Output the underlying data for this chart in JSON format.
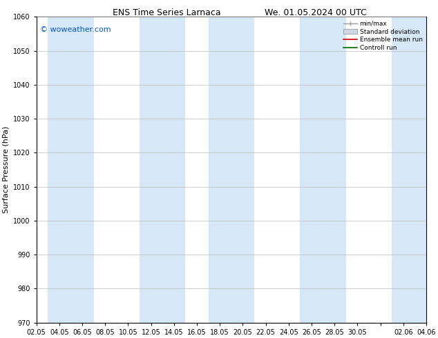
{
  "title_left": "ENS Time Series Larnaca",
  "title_right": "We. 01.05.2024 00 UTC",
  "ylabel": "Surface Pressure (hPa)",
  "ylim": [
    970,
    1060
  ],
  "yticks": [
    970,
    980,
    990,
    1000,
    1010,
    1020,
    1030,
    1040,
    1050,
    1060
  ],
  "xtick_labels": [
    "02.05",
    "04.05",
    "06.05",
    "08.05",
    "10.05",
    "12.05",
    "14.05",
    "16.05",
    "18.05",
    "20.05",
    "22.05",
    "24.05",
    "26.05",
    "28.05",
    "30.05",
    "",
    "02.06",
    "04.06"
  ],
  "watermark": "© woweather.com",
  "watermark_color": "#0055cc",
  "background_color": "#ffffff",
  "band_color": "#d6e8f7",
  "band_alpha": 1.0,
  "legend_minmax_color": "#999999",
  "legend_std_color": "#cccccc",
  "legend_mean_color": "#cc0000",
  "legend_control_color": "#006600",
  "title_fontsize": 9,
  "axis_fontsize": 8,
  "tick_fontsize": 7,
  "watermark_fontsize": 8
}
